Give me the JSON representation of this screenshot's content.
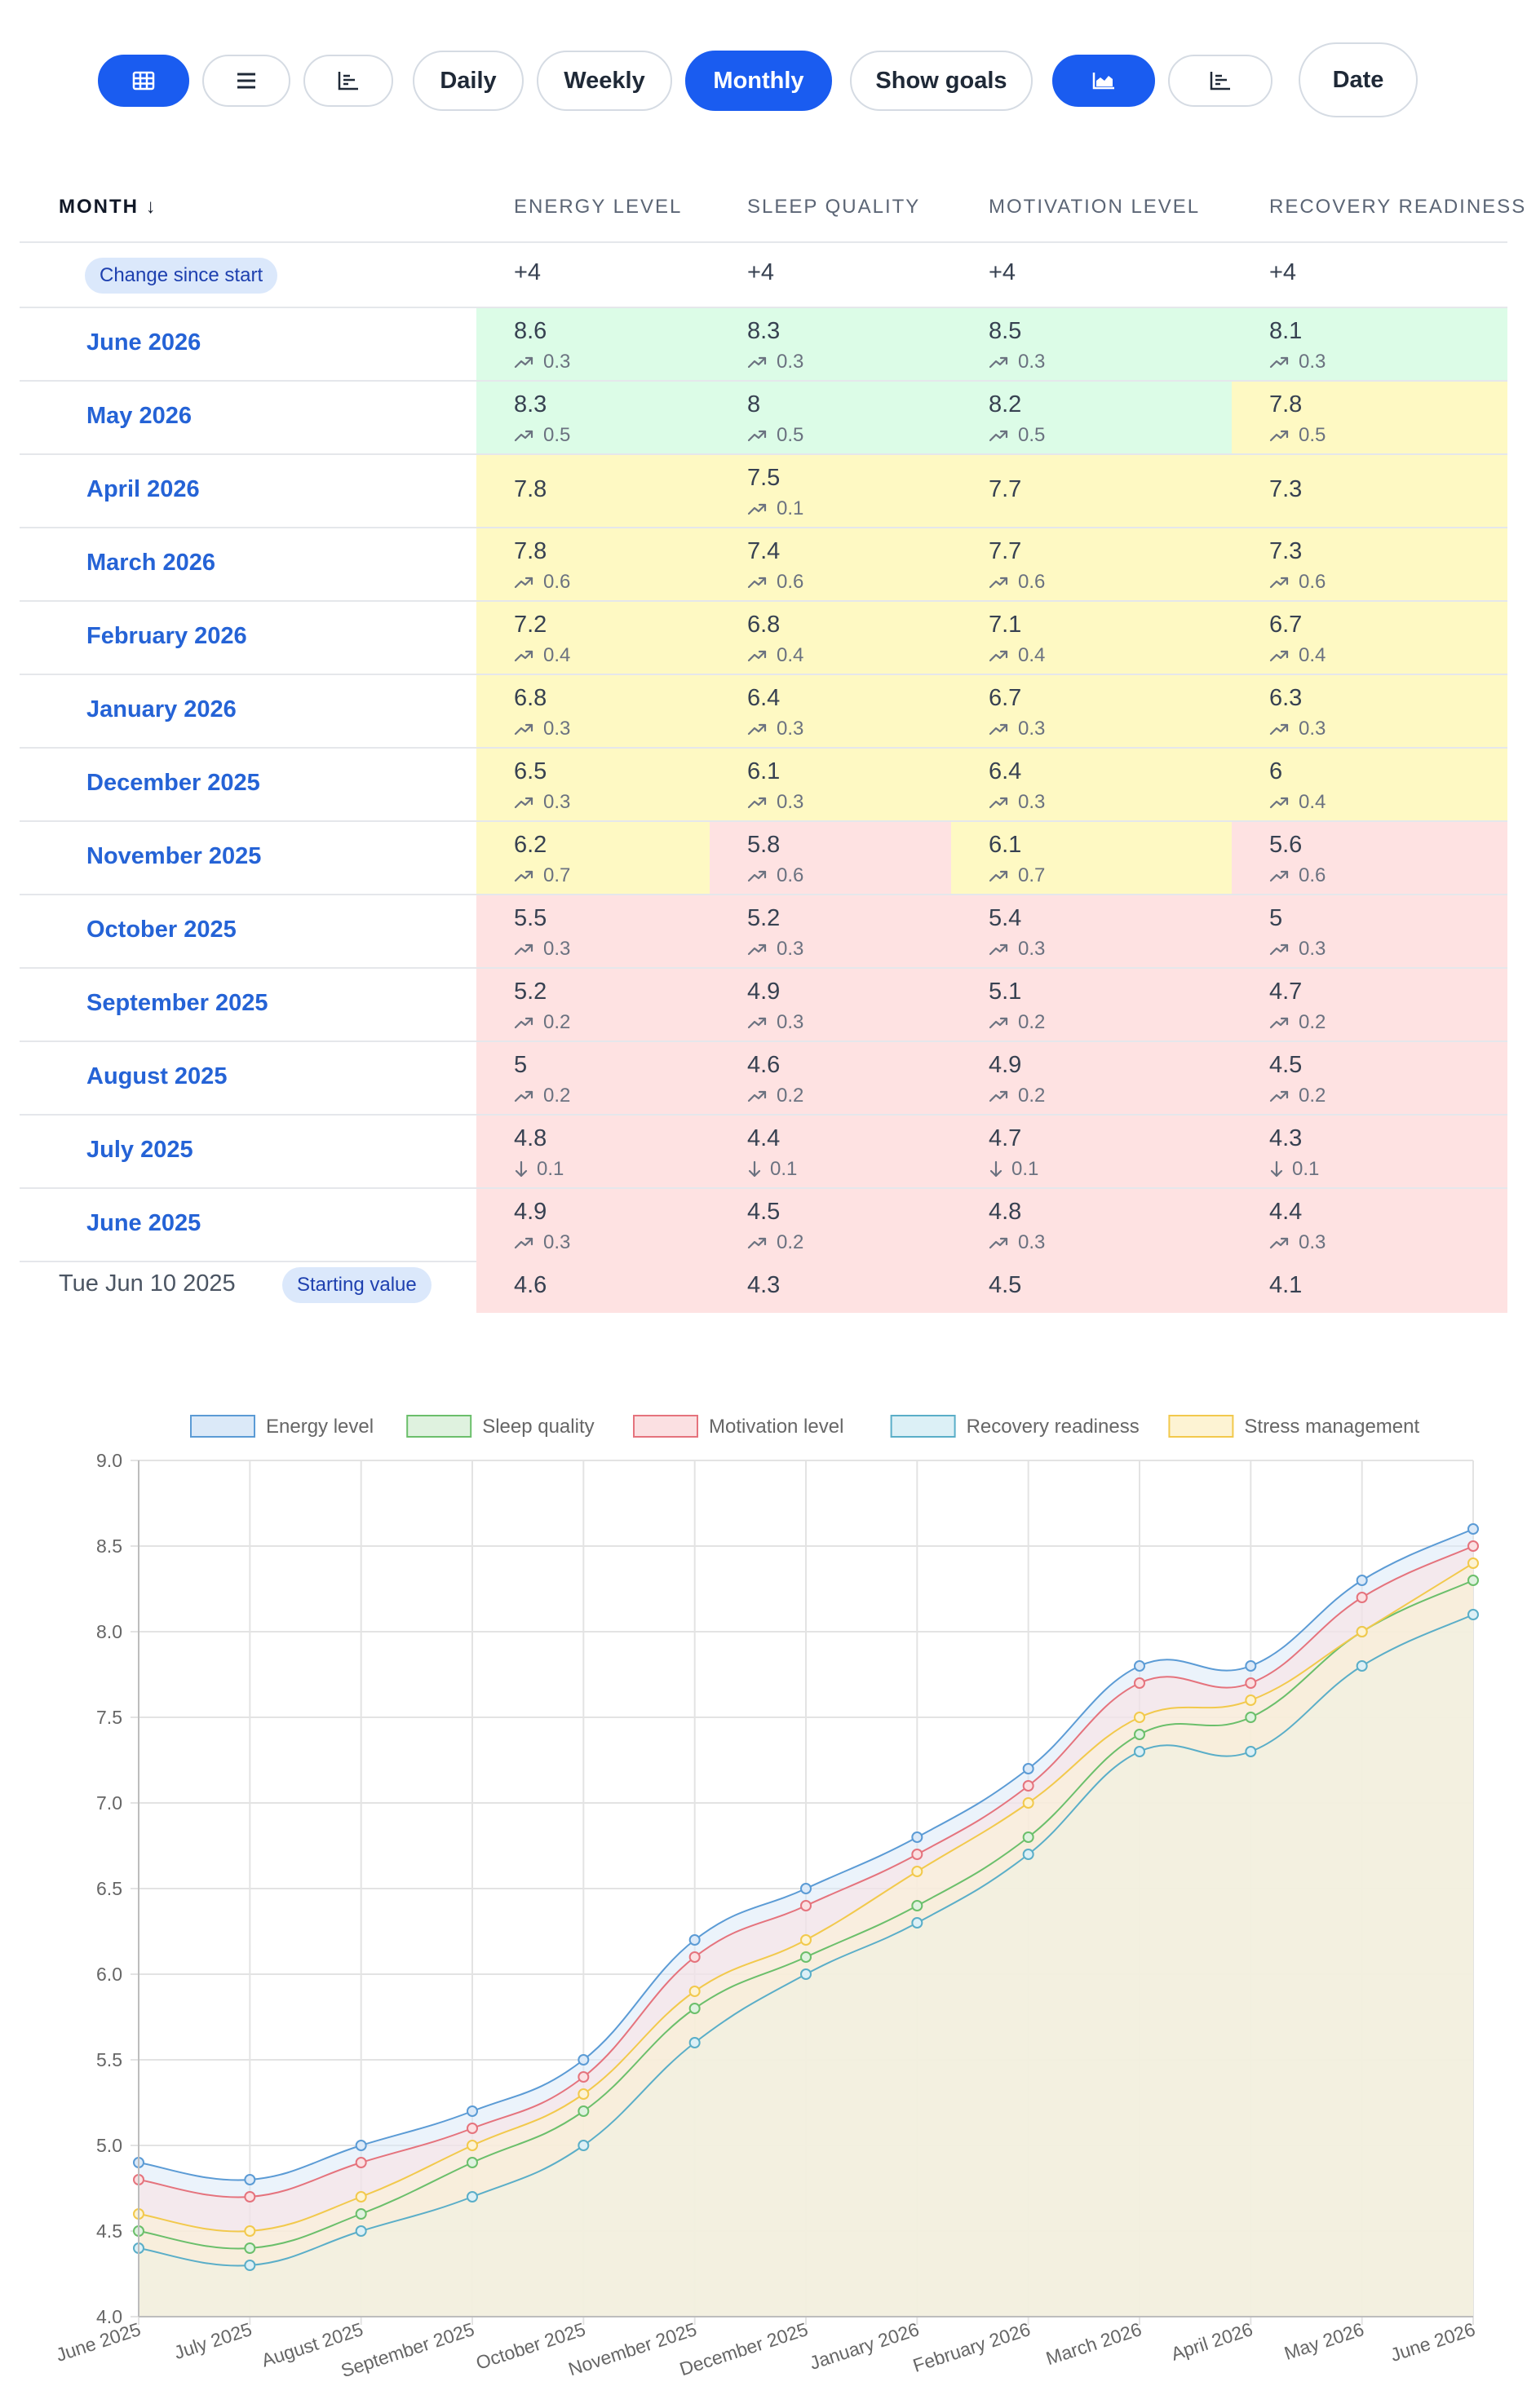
{
  "toolbar": {
    "view_buttons": [
      {
        "icon": "grid-icon",
        "active": true
      },
      {
        "icon": "list-icon",
        "active": false
      },
      {
        "icon": "bar-chart-icon",
        "active": false
      }
    ],
    "period_buttons": [
      {
        "label": "Daily",
        "active": false
      },
      {
        "label": "Weekly",
        "active": false
      },
      {
        "label": "Monthly",
        "active": true
      }
    ],
    "show_goals_label": "Show goals",
    "chart_buttons": [
      {
        "icon": "area-chart-icon",
        "active": true
      },
      {
        "icon": "bar-chart-icon",
        "active": false
      }
    ],
    "date_label": "Date"
  },
  "table": {
    "headers": {
      "month": "MONTH ↓",
      "energy": "ENERGY LEVEL",
      "sleep": "SLEEP QUALITY",
      "motivation": "MOTIVATION LEVEL",
      "recovery": "RECOVERY READINESS"
    },
    "change_row": {
      "badge": "Change since start",
      "values": [
        "+4",
        "+4",
        "+4",
        "+4"
      ]
    },
    "rows": [
      {
        "month": "June 2026",
        "cells": [
          {
            "value": "8.6",
            "trend": "up",
            "delta": "0.3",
            "status": "green"
          },
          {
            "value": "8.3",
            "trend": "up",
            "delta": "0.3",
            "status": "green"
          },
          {
            "value": "8.5",
            "trend": "up",
            "delta": "0.3",
            "status": "green"
          },
          {
            "value": "8.1",
            "trend": "up",
            "delta": "0.3",
            "status": "green"
          }
        ]
      },
      {
        "month": "May 2026",
        "cells": [
          {
            "value": "8.3",
            "trend": "up",
            "delta": "0.5",
            "status": "green"
          },
          {
            "value": "8",
            "trend": "up",
            "delta": "0.5",
            "status": "green"
          },
          {
            "value": "8.2",
            "trend": "up",
            "delta": "0.5",
            "status": "green"
          },
          {
            "value": "7.8",
            "trend": "up",
            "delta": "0.5",
            "status": "yellow"
          }
        ]
      },
      {
        "month": "April 2026",
        "cells": [
          {
            "value": "7.8",
            "trend": "",
            "delta": "",
            "status": "yellow"
          },
          {
            "value": "7.5",
            "trend": "up",
            "delta": "0.1",
            "status": "yellow"
          },
          {
            "value": "7.7",
            "trend": "",
            "delta": "",
            "status": "yellow"
          },
          {
            "value": "7.3",
            "trend": "",
            "delta": "",
            "status": "yellow"
          }
        ]
      },
      {
        "month": "March 2026",
        "cells": [
          {
            "value": "7.8",
            "trend": "up",
            "delta": "0.6",
            "status": "yellow"
          },
          {
            "value": "7.4",
            "trend": "up",
            "delta": "0.6",
            "status": "yellow"
          },
          {
            "value": "7.7",
            "trend": "up",
            "delta": "0.6",
            "status": "yellow"
          },
          {
            "value": "7.3",
            "trend": "up",
            "delta": "0.6",
            "status": "yellow"
          }
        ]
      },
      {
        "month": "February 2026",
        "cells": [
          {
            "value": "7.2",
            "trend": "up",
            "delta": "0.4",
            "status": "yellow"
          },
          {
            "value": "6.8",
            "trend": "up",
            "delta": "0.4",
            "status": "yellow"
          },
          {
            "value": "7.1",
            "trend": "up",
            "delta": "0.4",
            "status": "yellow"
          },
          {
            "value": "6.7",
            "trend": "up",
            "delta": "0.4",
            "status": "yellow"
          }
        ]
      },
      {
        "month": "January 2026",
        "cells": [
          {
            "value": "6.8",
            "trend": "up",
            "delta": "0.3",
            "status": "yellow"
          },
          {
            "value": "6.4",
            "trend": "up",
            "delta": "0.3",
            "status": "yellow"
          },
          {
            "value": "6.7",
            "trend": "up",
            "delta": "0.3",
            "status": "yellow"
          },
          {
            "value": "6.3",
            "trend": "up",
            "delta": "0.3",
            "status": "yellow"
          }
        ]
      },
      {
        "month": "December 2025",
        "cells": [
          {
            "value": "6.5",
            "trend": "up",
            "delta": "0.3",
            "status": "yellow"
          },
          {
            "value": "6.1",
            "trend": "up",
            "delta": "0.3",
            "status": "yellow"
          },
          {
            "value": "6.4",
            "trend": "up",
            "delta": "0.3",
            "status": "yellow"
          },
          {
            "value": "6",
            "trend": "up",
            "delta": "0.4",
            "status": "yellow"
          }
        ]
      },
      {
        "month": "November 2025",
        "cells": [
          {
            "value": "6.2",
            "trend": "up",
            "delta": "0.7",
            "status": "yellow"
          },
          {
            "value": "5.8",
            "trend": "up",
            "delta": "0.6",
            "status": "red"
          },
          {
            "value": "6.1",
            "trend": "up",
            "delta": "0.7",
            "status": "yellow"
          },
          {
            "value": "5.6",
            "trend": "up",
            "delta": "0.6",
            "status": "red"
          }
        ]
      },
      {
        "month": "October 2025",
        "cells": [
          {
            "value": "5.5",
            "trend": "up",
            "delta": "0.3",
            "status": "red"
          },
          {
            "value": "5.2",
            "trend": "up",
            "delta": "0.3",
            "status": "red"
          },
          {
            "value": "5.4",
            "trend": "up",
            "delta": "0.3",
            "status": "red"
          },
          {
            "value": "5",
            "trend": "up",
            "delta": "0.3",
            "status": "red"
          }
        ]
      },
      {
        "month": "September 2025",
        "cells": [
          {
            "value": "5.2",
            "trend": "up",
            "delta": "0.2",
            "status": "red"
          },
          {
            "value": "4.9",
            "trend": "up",
            "delta": "0.3",
            "status": "red"
          },
          {
            "value": "5.1",
            "trend": "up",
            "delta": "0.2",
            "status": "red"
          },
          {
            "value": "4.7",
            "trend": "up",
            "delta": "0.2",
            "status": "red"
          }
        ]
      },
      {
        "month": "August 2025",
        "cells": [
          {
            "value": "5",
            "trend": "up",
            "delta": "0.2",
            "status": "red"
          },
          {
            "value": "4.6",
            "trend": "up",
            "delta": "0.2",
            "status": "red"
          },
          {
            "value": "4.9",
            "trend": "up",
            "delta": "0.2",
            "status": "red"
          },
          {
            "value": "4.5",
            "trend": "up",
            "delta": "0.2",
            "status": "red"
          }
        ]
      },
      {
        "month": "July 2025",
        "cells": [
          {
            "value": "4.8",
            "trend": "down",
            "delta": "0.1",
            "status": "red"
          },
          {
            "value": "4.4",
            "trend": "down",
            "delta": "0.1",
            "status": "red"
          },
          {
            "value": "4.7",
            "trend": "down",
            "delta": "0.1",
            "status": "red"
          },
          {
            "value": "4.3",
            "trend": "down",
            "delta": "0.1",
            "status": "red"
          }
        ]
      },
      {
        "month": "June 2025",
        "cells": [
          {
            "value": "4.9",
            "trend": "up",
            "delta": "0.3",
            "status": "red"
          },
          {
            "value": "4.5",
            "trend": "up",
            "delta": "0.2",
            "status": "red"
          },
          {
            "value": "4.8",
            "trend": "up",
            "delta": "0.3",
            "status": "red"
          },
          {
            "value": "4.4",
            "trend": "up",
            "delta": "0.3",
            "status": "red"
          }
        ]
      }
    ],
    "starting_row": {
      "date": "Tue Jun 10 2025",
      "badge": "Starting value",
      "values": [
        "4.6",
        "4.3",
        "4.5",
        "4.1"
      ],
      "status": "red"
    }
  },
  "colors": {
    "accent": "#1a5cf0",
    "link": "#2563d6",
    "green": "#dcfce7",
    "yellow": "#fef9c3",
    "red": "#fee2e2"
  },
  "chart_data": {
    "type": "area",
    "categories": [
      "June 2025",
      "July 2025",
      "August 2025",
      "September 2025",
      "October 2025",
      "November 2025",
      "December 2025",
      "January 2026",
      "February 2026",
      "March 2026",
      "April 2026",
      "May 2026",
      "June 2026"
    ],
    "series": [
      {
        "name": "Energy level",
        "color": "#5b9bd5",
        "fill": "#dbe9f8",
        "values": [
          4.9,
          4.8,
          5.0,
          5.2,
          5.5,
          6.2,
          6.5,
          6.8,
          7.2,
          7.8,
          7.8,
          8.3,
          8.6
        ]
      },
      {
        "name": "Sleep quality",
        "color": "#6bbf6b",
        "fill": "#dff2df",
        "values": [
          4.5,
          4.4,
          4.6,
          4.9,
          5.2,
          5.8,
          6.1,
          6.4,
          6.8,
          7.4,
          7.5,
          8.0,
          8.3
        ]
      },
      {
        "name": "Motivation level",
        "color": "#e5737d",
        "fill": "#fbe0e2",
        "values": [
          4.8,
          4.7,
          4.9,
          5.1,
          5.4,
          6.1,
          6.4,
          6.7,
          7.1,
          7.7,
          7.7,
          8.2,
          8.5
        ]
      },
      {
        "name": "Recovery readiness",
        "color": "#5aaec8",
        "fill": "#dcf0f6",
        "values": [
          4.4,
          4.3,
          4.5,
          4.7,
          5.0,
          5.6,
          6.0,
          6.3,
          6.7,
          7.3,
          7.3,
          7.8,
          8.1
        ]
      },
      {
        "name": "Stress management",
        "color": "#f2c94c",
        "fill": "#fdf3d3",
        "values": [
          4.6,
          4.5,
          4.7,
          5.0,
          5.3,
          5.9,
          6.2,
          6.6,
          7.0,
          7.5,
          7.6,
          8.0,
          8.4
        ]
      }
    ],
    "y_ticks": [
      "9.0",
      "8.5",
      "8.0",
      "7.5",
      "7.0",
      "6.5",
      "6.0",
      "5.5",
      "5.0",
      "4.5",
      "4.0"
    ],
    "ylim": [
      4.0,
      9.0
    ],
    "grid": true,
    "legend": "top"
  }
}
